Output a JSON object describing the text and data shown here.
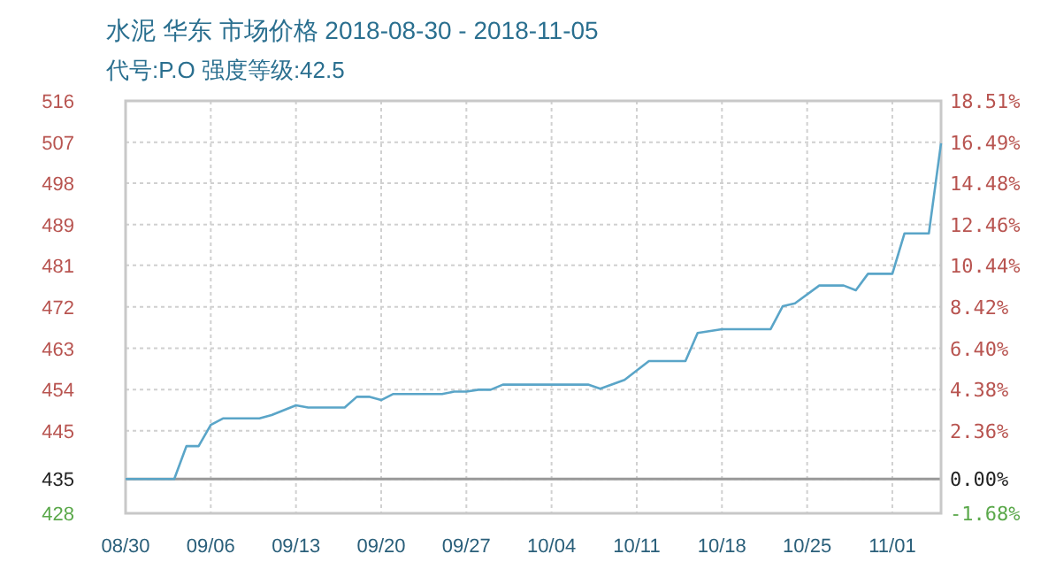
{
  "chart_data": {
    "type": "line",
    "title": "水泥 华东 市场价格 2018-08-30 - 2018-11-05",
    "subtitle": "代号:P.O 强度等级:42.5",
    "x": [
      "2018-08-30",
      "2018-09-03",
      "2018-09-04",
      "2018-09-05",
      "2018-09-06",
      "2018-09-07",
      "2018-09-10",
      "2018-09-11",
      "2018-09-13",
      "2018-09-14",
      "2018-09-17",
      "2018-09-18",
      "2018-09-19",
      "2018-09-20",
      "2018-09-21",
      "2018-09-25",
      "2018-09-26",
      "2018-09-27",
      "2018-09-28",
      "2018-09-29",
      "2018-09-30",
      "2018-10-07",
      "2018-10-08",
      "2018-10-10",
      "2018-10-12",
      "2018-10-15",
      "2018-10-16",
      "2018-10-18",
      "2018-10-22",
      "2018-10-23",
      "2018-10-24",
      "2018-10-26",
      "2018-10-28",
      "2018-10-29",
      "2018-10-30",
      "2018-11-01",
      "2018-11-02",
      "2018-11-04",
      "2018-11-05"
    ],
    "series": [
      {
        "color": "#5aa5c8",
        "values": [
          435,
          435,
          442,
          442,
          446.5,
          447.9,
          447.9,
          448.6,
          450.7,
          450.2,
          450.2,
          452.5,
          452.5,
          451.8,
          453.1,
          453.1,
          453.6,
          453.6,
          454,
          454,
          455.1,
          455.1,
          454.2,
          456.1,
          460.1,
          460.1,
          466.1,
          466.9,
          466.9,
          471.8,
          472.4,
          476.2,
          476.2,
          475.2,
          478.7,
          478.7,
          487.3,
          487.3,
          506.5
        ]
      }
    ],
    "xlim": [
      "2018-08-30",
      "2018-11-05"
    ],
    "xticks": [
      {
        "value": "2018-08-30",
        "label": "08/30"
      },
      {
        "value": "2018-09-06",
        "label": "09/06"
      },
      {
        "value": "2018-09-13",
        "label": "09/13"
      },
      {
        "value": "2018-09-20",
        "label": "09/20"
      },
      {
        "value": "2018-09-27",
        "label": "09/27"
      },
      {
        "value": "2018-10-04",
        "label": "10/04"
      },
      {
        "value": "2018-10-11",
        "label": "10/11"
      },
      {
        "value": "2018-10-18",
        "label": "10/18"
      },
      {
        "value": "2018-10-25",
        "label": "10/25"
      },
      {
        "value": "2018-11-01",
        "label": "11/01"
      }
    ],
    "ylim": [
      427.69,
      515.52
    ],
    "yticks": [
      {
        "value": 427.69,
        "label": "428"
      },
      {
        "value": 435,
        "label": "435"
      },
      {
        "value": 445.27,
        "label": "445"
      },
      {
        "value": 454.05,
        "label": "454"
      },
      {
        "value": 462.84,
        "label": "463"
      },
      {
        "value": 471.63,
        "label": "472"
      },
      {
        "value": 480.5,
        "label": "481"
      },
      {
        "value": 489.2,
        "label": "489"
      },
      {
        "value": 497.99,
        "label": "498"
      },
      {
        "value": 506.73,
        "label": "507"
      },
      {
        "value": 515.52,
        "label": "516"
      }
    ],
    "y2lim": [
      -1.68,
      18.51
    ],
    "y2ticks": [
      {
        "value": -1.68,
        "label": "-1.68%"
      },
      {
        "value": 0,
        "label": "0.00%"
      },
      {
        "value": 2.36,
        "label": "2.36%"
      },
      {
        "value": 4.38,
        "label": "4.38%"
      },
      {
        "value": 6.4,
        "label": "6.40%"
      },
      {
        "value": 8.42,
        "label": "8.42%"
      },
      {
        "value": 10.44,
        "label": "10.44%"
      },
      {
        "value": 12.46,
        "label": "12.46%"
      },
      {
        "value": 14.48,
        "label": "14.48%"
      },
      {
        "value": 16.49,
        "label": "16.49%"
      },
      {
        "value": 18.51,
        "label": "18.51%"
      }
    ],
    "ref_lines": [
      {
        "axis": "y",
        "value": 435,
        "color": "#999999"
      }
    ],
    "grid": true,
    "line_style": "solid"
  }
}
